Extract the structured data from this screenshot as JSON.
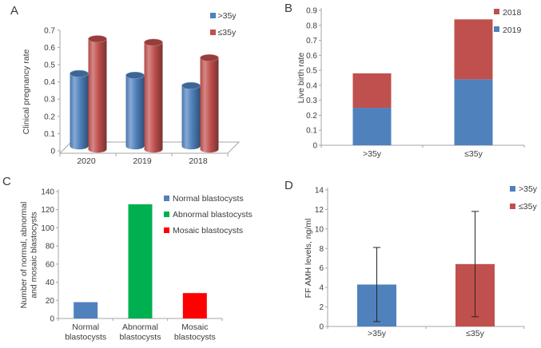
{
  "figure": {
    "background": "#ffffff",
    "panels": [
      {
        "label": "A"
      },
      {
        "label": "B"
      },
      {
        "label": "C"
      },
      {
        "label": "D"
      }
    ]
  },
  "colors": {
    "blue": "#4f81bd",
    "red": "#c0504d",
    "green": "#00b050",
    "bright_red": "#ff0000",
    "axis": "#a6a6a6",
    "text": "#3b3b3b"
  },
  "chart_data": [
    {
      "panel": "A",
      "type": "bar",
      "style": "3d-cylinder",
      "title": "",
      "ylabel": "Clinical pregnancy rate",
      "ylim": [
        0,
        0.7
      ],
      "ytick_step": 0.1,
      "categories": [
        "2020",
        "2019",
        "2018"
      ],
      "series": [
        {
          "name": ">35y",
          "color": "#4f81bd",
          "values": [
            0.42,
            0.41,
            0.35
          ]
        },
        {
          "name": "≤35y",
          "color": "#c0504d",
          "values": [
            0.64,
            0.62,
            0.53
          ]
        }
      ],
      "legend": [
        {
          "label": ">35y",
          "color": "#4f81bd"
        },
        {
          "label": "≤35y",
          "color": "#c0504d"
        }
      ],
      "legend_position": "top-right",
      "grid": false
    },
    {
      "panel": "B",
      "type": "stacked-bar",
      "title": "",
      "ylabel": "Live birth rate",
      "ylim": [
        0,
        0.9
      ],
      "ytick_step": 0.1,
      "categories": [
        ">35y",
        "≤35y"
      ],
      "series": [
        {
          "name": "2019",
          "color": "#4f81bd",
          "values": [
            0.25,
            0.44
          ]
        },
        {
          "name": "2018",
          "color": "#c0504d",
          "values": [
            0.23,
            0.4
          ]
        }
      ],
      "stack_totals": [
        0.48,
        0.84
      ],
      "legend": [
        {
          "label": "2018",
          "color": "#c0504d"
        },
        {
          "label": "2019",
          "color": "#4f81bd"
        }
      ],
      "legend_position": "top-right",
      "grid": false
    },
    {
      "panel": "C",
      "type": "bar",
      "title": "",
      "ylabel_lines": [
        "Number of normal, abnormal",
        "and mosaic blastocysts"
      ],
      "ylim": [
        0,
        140
      ],
      "ytick_step": 20,
      "categories": [
        [
          "Normal",
          "blastocysts"
        ],
        [
          "Abnormal",
          "blastocysts"
        ],
        [
          "Mosaic",
          "blastocysts"
        ]
      ],
      "series": [
        {
          "name": "Blastocyst count",
          "values": [
            18,
            126,
            28
          ],
          "colors": [
            "#4f81bd",
            "#00b050",
            "#ff0000"
          ]
        }
      ],
      "legend": [
        {
          "label": "Normal blastocysts",
          "color": "#4f81bd"
        },
        {
          "label": "Abnormal blastocysts",
          "color": "#00b050"
        },
        {
          "label": "Mosaic blastocysts",
          "color": "#ff0000"
        }
      ],
      "legend_position": "top-right",
      "grid": false
    },
    {
      "panel": "D",
      "type": "bar",
      "title": "",
      "ylabel": "FF AMH levels, ng/ml",
      "ylim": [
        0,
        14
      ],
      "ytick_step": 2,
      "categories": [
        ">35y",
        "≤35y"
      ],
      "series": [
        {
          "name": "FF AMH level",
          "values": [
            4.3,
            6.4
          ],
          "colors": [
            "#4f81bd",
            "#c0504d"
          ],
          "error_low": [
            0.5,
            1.0
          ],
          "error_high": [
            8.1,
            11.8
          ]
        }
      ],
      "legend": [
        {
          "label": ">35y",
          "color": "#4f81bd"
        },
        {
          "label": "≤35y",
          "color": "#c0504d"
        }
      ],
      "legend_position": "top-right",
      "grid": false
    }
  ]
}
